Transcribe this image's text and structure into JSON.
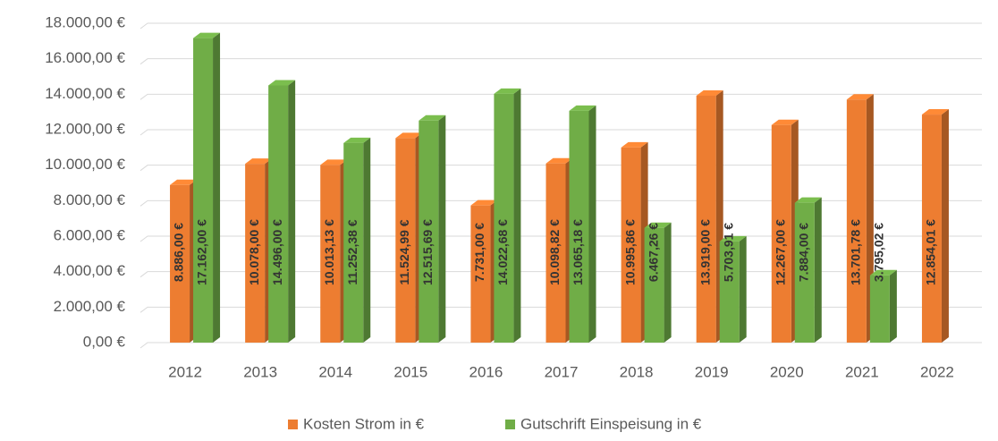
{
  "chart_data": {
    "type": "bar3d",
    "categories": [
      "2012",
      "2013",
      "2014",
      "2015",
      "2016",
      "2017",
      "2018",
      "2019",
      "2020",
      "2021",
      "2022"
    ],
    "series": [
      {
        "name": "Kosten Strom in €",
        "color": "#ed7d31",
        "values": [
          8886.0,
          10078.0,
          10013.13,
          11524.99,
          7731.0,
          10098.82,
          10995.86,
          13919.0,
          12267.0,
          13701.78,
          12854.01
        ],
        "value_labels": [
          "8.886,00 €",
          "10.078,00 €",
          "10.013,13 €",
          "11.524,99 €",
          "7.731,00 €",
          "10.098,82 €",
          "10.995,86 €",
          "13.919,00 €",
          "12.267,00 €",
          "13.701,78 €",
          "12.854,01 €"
        ]
      },
      {
        "name": "Gutschrift Einspeisung in €",
        "color": "#70ad47",
        "values": [
          17162.0,
          14496.0,
          11252.38,
          12515.69,
          14022.68,
          13065.18,
          6467.26,
          5703.91,
          7884.0,
          3795.02,
          null
        ],
        "value_labels": [
          "17.162,00 €",
          "14.496,00 €",
          "11.252,38 €",
          "12.515,69 €",
          "14.022,68 €",
          "13.065,18 €",
          "6.467,26 €",
          "5.703,91 €",
          "7.884,00 €",
          "3.795,02 €",
          null
        ]
      }
    ],
    "ylim": [
      0,
      18000
    ],
    "yticks": [
      {
        "value": 0,
        "label": "0,00 €"
      },
      {
        "value": 2000,
        "label": "2.000,00 €"
      },
      {
        "value": 4000,
        "label": "4.000,00 €"
      },
      {
        "value": 6000,
        "label": "6.000,00 €"
      },
      {
        "value": 8000,
        "label": "8.000,00 €"
      },
      {
        "value": 10000,
        "label": "10.000,00 €"
      },
      {
        "value": 12000,
        "label": "12.000,00 €"
      },
      {
        "value": 14000,
        "label": "14.000,00 €"
      },
      {
        "value": 16000,
        "label": "16.000,00 €"
      },
      {
        "value": 18000,
        "label": "18.000,00 €"
      }
    ],
    "grid": true,
    "legend": "bottom"
  }
}
